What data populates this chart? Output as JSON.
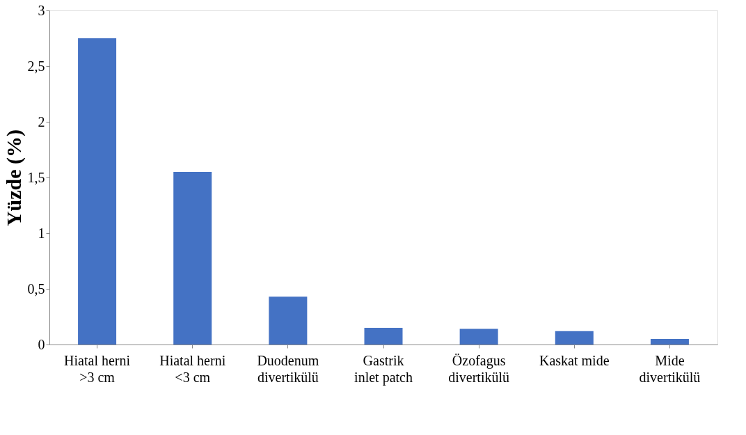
{
  "chart_data": {
    "type": "bar",
    "ylabel": "Yüzde (%)",
    "categories": [
      "Hiatal herni >3 cm",
      "Hiatal herni <3 cm",
      "Duodenum divertikülü",
      "Gastrik inlet patch",
      "Özofagus divertikülü",
      "Kaskat mide",
      "Mide divertikülü"
    ],
    "values": [
      2.75,
      1.55,
      0.43,
      0.15,
      0.14,
      0.12,
      0.05
    ],
    "color": "#4472c4",
    "ylim": [
      0,
      3
    ],
    "yticks": [
      0,
      {
        "value": 0.5,
        "label": "0,5"
      },
      1,
      {
        "value": 1.5,
        "label": "1,5"
      },
      2,
      {
        "value": 2.5,
        "label": "2,5"
      },
      3
    ],
    "grid": false
  }
}
